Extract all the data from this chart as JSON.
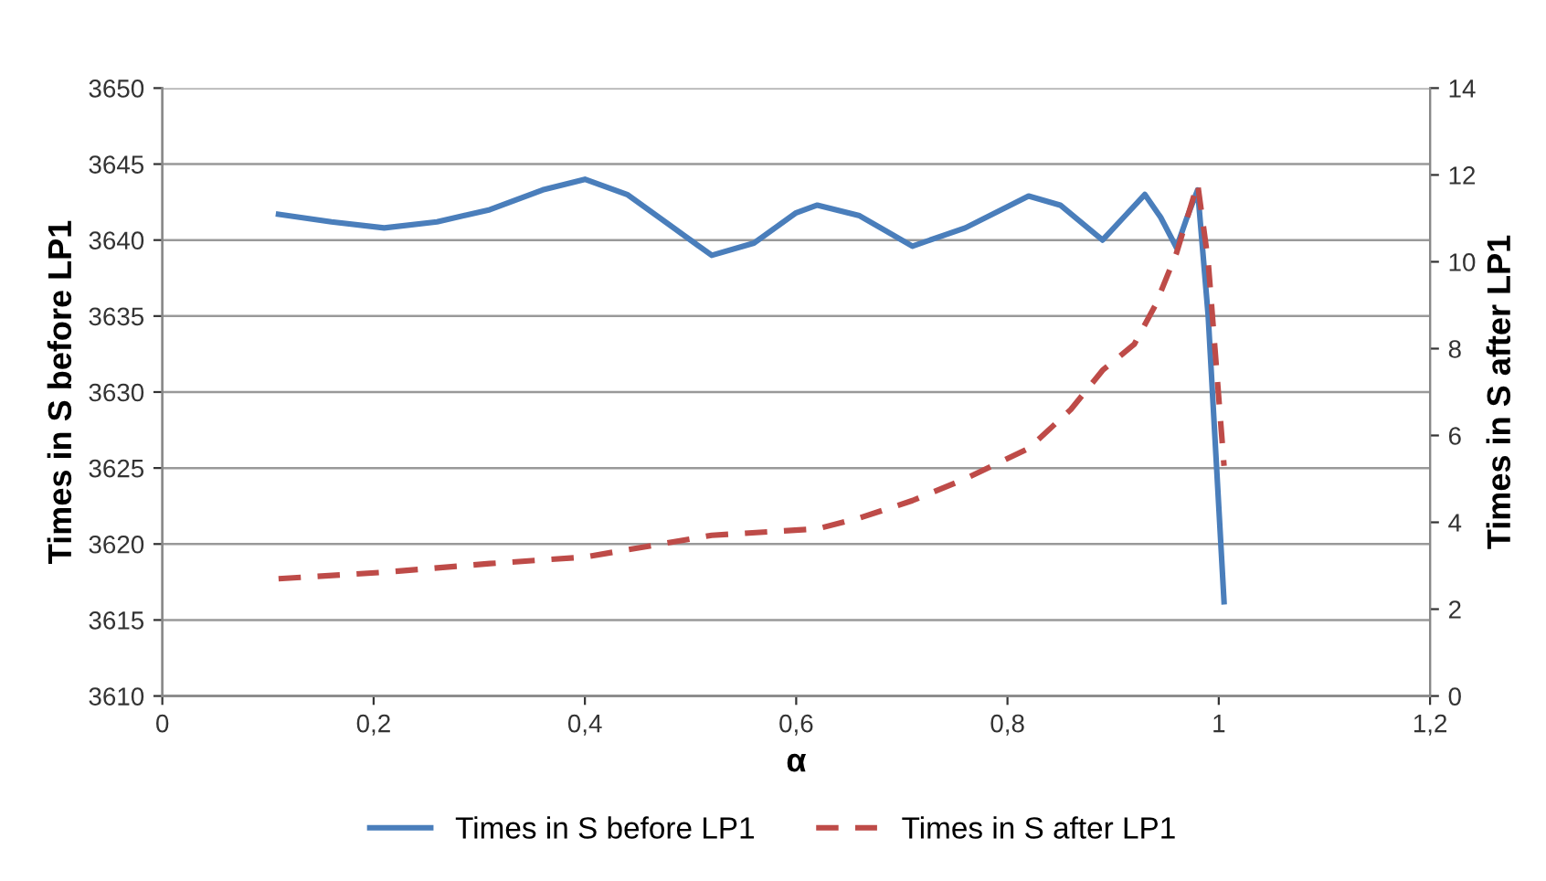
{
  "chart_data": {
    "type": "line",
    "xlabel": "α",
    "ylabel": "Times in S before LP1",
    "y2label": "Times in S after LP1",
    "xlim": [
      0,
      1.2
    ],
    "xticks": [
      0,
      {
        "value": 0.2,
        "label": "0,2"
      },
      {
        "value": 0.4,
        "label": "0,4"
      },
      {
        "value": 0.6,
        "label": "0,6"
      },
      {
        "value": 0.8,
        "label": "0,8"
      },
      1,
      {
        "value": 1.2,
        "label": "1,2"
      }
    ],
    "ylim": [
      3610,
      3650
    ],
    "yticks": [
      3610,
      3615,
      3620,
      3625,
      3630,
      3635,
      3640,
      3645,
      3650
    ],
    "y2lim": [
      0,
      14
    ],
    "y2ticks": [
      0,
      2,
      4,
      6,
      8,
      10,
      12,
      14
    ],
    "grid": "y",
    "legend": "bottom",
    "marker": "none",
    "series": [
      {
        "name": "Times in S before LP1",
        "color": "#4a7ebb",
        "line_style": "solid",
        "x": [
          0.11,
          0.16,
          0.21,
          0.26,
          0.31,
          0.36,
          0.4,
          0.44,
          0.48,
          0.52,
          0.56,
          0.6,
          0.62,
          0.66,
          0.71,
          0.76,
          0.82,
          0.85,
          0.89,
          0.91,
          0.93,
          0.945,
          0.96,
          0.97,
          0.98,
          0.99,
          1.005
        ],
        "values": [
          3641.7,
          3641.2,
          3640.8,
          3641.2,
          3642,
          3643.3,
          3644,
          3643,
          3641,
          3639,
          3639.8,
          3641.8,
          3642.3,
          3641.6,
          3639.6,
          3640.8,
          3642.9,
          3642.3,
          3640,
          3641.5,
          3643,
          3641.5,
          3639.5,
          3641.5,
          3643.3,
          3635,
          3616.2
        ]
      },
      {
        "name": "Times in S after LP1",
        "color": "#be4b48",
        "line_style": "dashed",
        "axis": "y2",
        "x": [
          0.11,
          0.21,
          0.31,
          0.4,
          0.46,
          0.52,
          0.62,
          0.66,
          0.71,
          0.76,
          0.82,
          0.86,
          0.89,
          0.92,
          0.94,
          0.96,
          0.97,
          0.98,
          0.99,
          1.005
        ],
        "values": [
          2.7,
          2.85,
          3.05,
          3.2,
          3.45,
          3.7,
          3.85,
          4.1,
          4.5,
          5.0,
          5.7,
          6.6,
          7.5,
          8.1,
          9.0,
          10.2,
          11.0,
          11.8,
          10,
          5.3
        ]
      }
    ]
  }
}
